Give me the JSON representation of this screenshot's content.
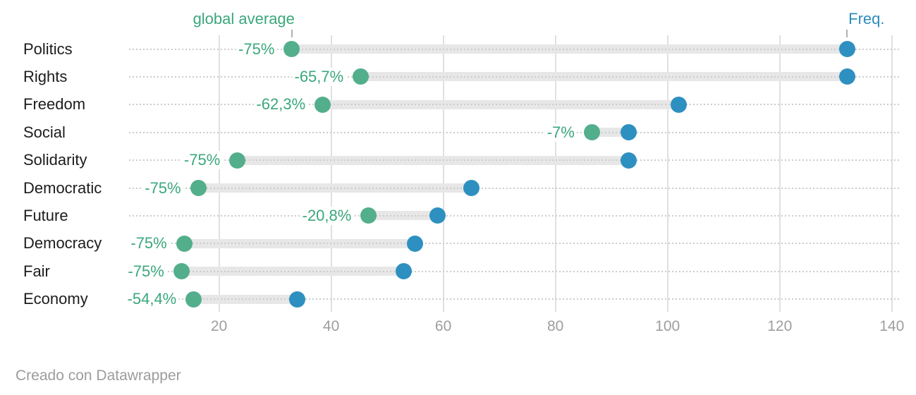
{
  "annotations": {
    "global_average_label": "global average",
    "freq_label": "Freq."
  },
  "footer": {
    "credit": "Creado con Datawrapper"
  },
  "colors": {
    "green_dot": "#53ae8c",
    "green_text": "#3ba77c",
    "blue_dot": "#2e90c0",
    "blue_text": "#2d8cbb",
    "connector": "#e7e7e7",
    "grid": "#e0e0e0",
    "axis_text": "#9e9e9e"
  },
  "chart_data": {
    "type": "dumbbell",
    "categories": [
      "Politics",
      "Rights",
      "Freedom",
      "Social",
      "Solidarity",
      "Democratic",
      "Future",
      "Democracy",
      "Fair",
      "Economy"
    ],
    "series": [
      {
        "name": "global average",
        "color": "#53ae8c",
        "values": [
          33,
          45.3,
          38.5,
          86.5,
          23.3,
          16.3,
          46.7,
          13.8,
          13.3,
          15.5
        ]
      },
      {
        "name": "Freq.",
        "color": "#2e90c0",
        "values": [
          132,
          132,
          102,
          93,
          93,
          65,
          59,
          55,
          53,
          34
        ]
      }
    ],
    "change_labels": [
      "-75%",
      "-65,7%",
      "-62,3%",
      "-7%",
      "-75%",
      "-75%",
      "-20,8%",
      "-75%",
      "-75%",
      "-54,4%"
    ],
    "x_ticks": [
      20,
      40,
      60,
      80,
      100,
      120,
      140
    ],
    "xlim": [
      0,
      144
    ],
    "xlabel": "",
    "ylabel": "",
    "title": "",
    "grid": "vertical-only",
    "legend_position": "inline-annotations"
  }
}
